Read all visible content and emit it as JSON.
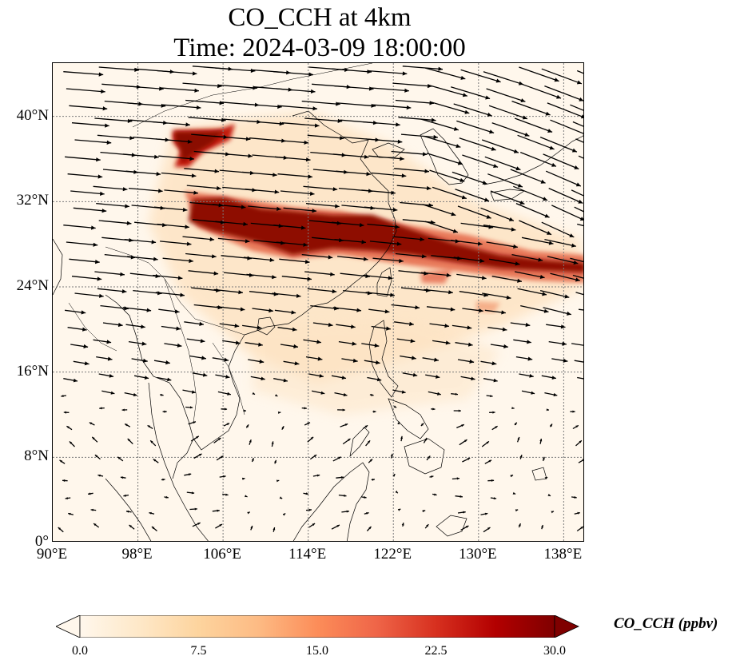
{
  "title": {
    "line1": "CO_CCH at 4km",
    "line2": "Time: 2024-03-09 18:00:00"
  },
  "map": {
    "lon_range": [
      90,
      140
    ],
    "lat_range": [
      0,
      45
    ],
    "lon_ticks": [
      {
        "value": 90,
        "label": "90°E"
      },
      {
        "value": 98,
        "label": "98°E"
      },
      {
        "value": 106,
        "label": "106°E"
      },
      {
        "value": 114,
        "label": "114°E"
      },
      {
        "value": 122,
        "label": "122°E"
      },
      {
        "value": 130,
        "label": "130°E"
      },
      {
        "value": 138,
        "label": "138°E"
      }
    ],
    "lat_ticks": [
      {
        "value": 0,
        "label": "0°"
      },
      {
        "value": 8,
        "label": "8°N"
      },
      {
        "value": 16,
        "label": "16°N"
      },
      {
        "value": 24,
        "label": "24°N"
      },
      {
        "value": 32,
        "label": "32°N"
      },
      {
        "value": 40,
        "label": "40°N"
      }
    ],
    "gridlines": true
  },
  "colorbar": {
    "title": "CO_CCH (ppbv)",
    "min": 0,
    "max": 30,
    "tick_labels": [
      "0.0",
      "7.5",
      "15.0",
      "22.5",
      "30.0"
    ],
    "tick_values": [
      0,
      7.5,
      15,
      22.5,
      30
    ],
    "colormap": [
      "#fff7ec",
      "#fee8c8",
      "#fdd49e",
      "#fdbb84",
      "#fc8d59",
      "#ef6548",
      "#d7301f",
      "#b30000",
      "#7f0000"
    ],
    "extend": "both"
  },
  "colors": {
    "land_outline": "#000000",
    "grid": "#7a7a7a",
    "arrow": "#000000",
    "background": "#fff7ec"
  }
}
